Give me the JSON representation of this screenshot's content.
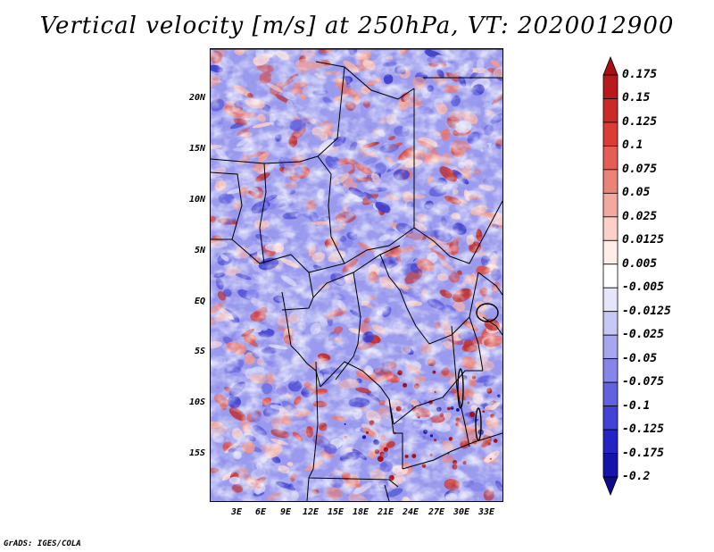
{
  "title": "Vertical velocity [m/s] at 250hPa, VT: 2020012900",
  "credit": "GrADS: IGES/COLA",
  "map": {
    "lat_labels": [
      "20N",
      "15N",
      "10N",
      "5N",
      "EQ",
      "5S",
      "10S",
      "15S"
    ],
    "lon_labels": [
      "3E",
      "6E",
      "9E",
      "12E",
      "15E",
      "18E",
      "21E",
      "24E",
      "27E",
      "30E",
      "33E"
    ]
  },
  "colorbar": {
    "labels": [
      "0.175",
      "0.15",
      "0.125",
      "0.1",
      "0.075",
      "0.05",
      "0.025",
      "0.0125",
      "0.005",
      "-0.005",
      "-0.0125",
      "-0.025",
      "-0.05",
      "-0.075",
      "-0.1",
      "-0.125",
      "-0.175",
      "-0.2"
    ],
    "colors": [
      "#a50f15",
      "#b8191d",
      "#cb2a28",
      "#dc3c36",
      "#e45e55",
      "#ec8378",
      "#f4a9a0",
      "#fbd0c9",
      "#fdeeea",
      "#ffffff",
      "#e6e6fb",
      "#c8c8f7",
      "#a7a7f1",
      "#8585ea",
      "#6262e1",
      "#4242d6",
      "#2424c4",
      "#1414a8",
      "#0c0c8a"
    ],
    "arrow_top_color": "#a50f15",
    "arrow_bottom_color": "#0c0c8a"
  },
  "colors": {
    "positive_base": "#e87a72",
    "negative_base": "#7474e6",
    "border_color": "#000000"
  }
}
